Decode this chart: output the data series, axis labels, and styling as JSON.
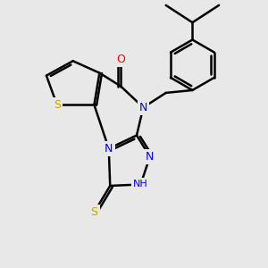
{
  "background_color": "#e8e8e8",
  "bond_color": "black",
  "bond_width": 1.8,
  "atom_colors": {
    "S": "#c8a000",
    "N": "#0000ff",
    "O": "#ff0000",
    "C": "black",
    "H": "black"
  },
  "font_size": 9,
  "figsize": [
    3.0,
    3.0
  ],
  "dpi": 100
}
